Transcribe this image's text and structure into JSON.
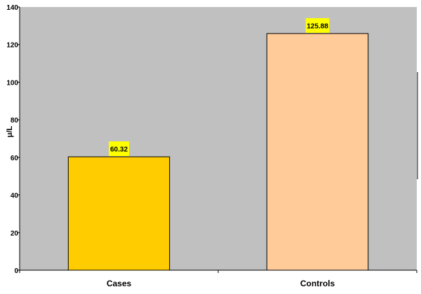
{
  "chart_data": {
    "type": "bar",
    "title": "",
    "xlabel": "",
    "ylabel": "μ/L",
    "categories": [
      "Cases",
      "Controls"
    ],
    "values": [
      60.32,
      125.88
    ],
    "data_labels": [
      "60.32",
      "125.88"
    ],
    "ylim": [
      0,
      140
    ],
    "yticks": [
      0,
      20,
      40,
      60,
      80,
      100,
      120,
      140
    ],
    "ytick_labels": [
      "0",
      "20",
      "40",
      "60",
      "80",
      "100",
      "120",
      "140"
    ],
    "grid": false,
    "legend": "none",
    "colors": {
      "plot_background": "#c0c0c0",
      "bar_fills": [
        "#ffcc00",
        "#ffcc99"
      ],
      "bar_outline": "#000000",
      "data_label_background": "#ffff00"
    }
  }
}
